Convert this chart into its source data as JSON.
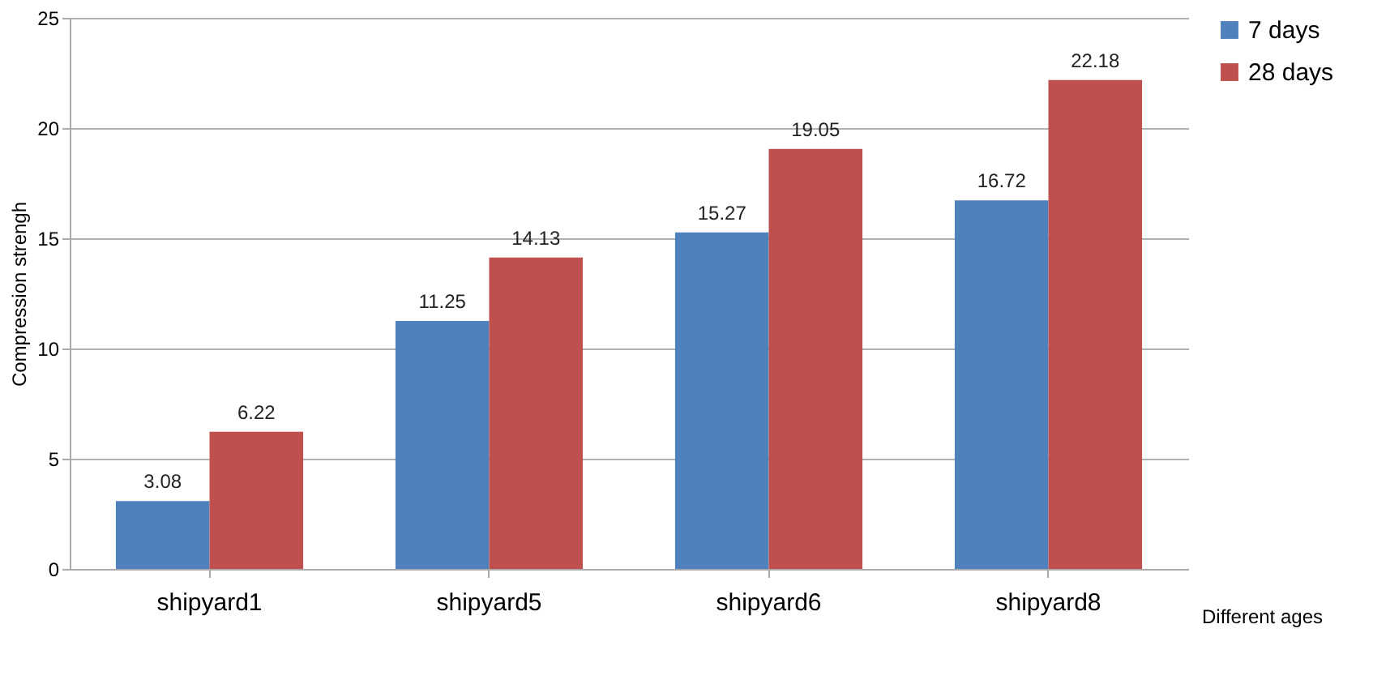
{
  "chart_data": {
    "type": "bar",
    "ylabel": "Compression strengh",
    "xlabel": "Different ages",
    "categories": [
      "shipyard1",
      "shipyard5",
      "shipyard6",
      "shipyard8"
    ],
    "series": [
      {
        "name": "7 days",
        "color": "#4f81bd",
        "values": [
          3.08,
          11.25,
          15.27,
          16.72
        ]
      },
      {
        "name": "28 days",
        "color": "#c0504d",
        "values": [
          6.22,
          14.13,
          19.05,
          22.18
        ]
      }
    ],
    "ylim": [
      0,
      25
    ],
    "yticks": [
      0,
      5,
      10,
      15,
      20,
      25
    ],
    "grid": "y",
    "legend": "right",
    "data_labels": true
  }
}
